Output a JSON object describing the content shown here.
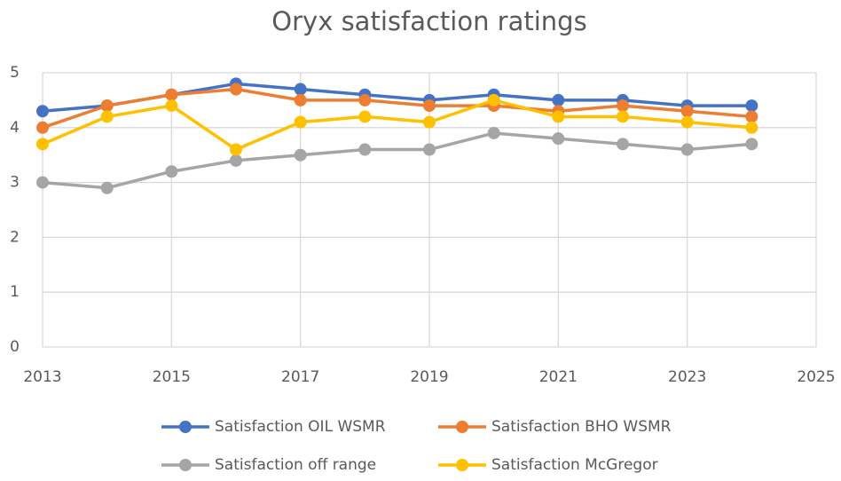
{
  "chart_data": {
    "type": "line",
    "title": "Oryx satisfaction ratings",
    "x": [
      2013,
      2014,
      2015,
      2016,
      2017,
      2018,
      2019,
      2020,
      2021,
      2022,
      2023,
      2024
    ],
    "series": [
      {
        "name": "Satisfaction OIL WSMR",
        "color": "#4472c4",
        "values": [
          4.3,
          4.4,
          4.6,
          4.8,
          4.7,
          4.6,
          4.5,
          4.6,
          4.5,
          4.5,
          4.4,
          4.4
        ]
      },
      {
        "name": "Satisfaction BHO WSMR",
        "color": "#ed7d31",
        "values": [
          4.0,
          4.4,
          4.6,
          4.7,
          4.5,
          4.5,
          4.4,
          4.4,
          4.3,
          4.4,
          4.3,
          4.2
        ]
      },
      {
        "name": "Satisfaction off range",
        "color": "#a5a5a5",
        "values": [
          3.0,
          2.9,
          3.2,
          3.4,
          3.5,
          3.6,
          3.6,
          3.9,
          3.8,
          3.7,
          3.6,
          3.7
        ]
      },
      {
        "name": "Satisfaction McGregor",
        "color": "#ffc000",
        "values": [
          3.7,
          4.2,
          4.4,
          3.6,
          4.1,
          4.2,
          4.1,
          4.5,
          4.2,
          4.2,
          4.1,
          4.0
        ]
      }
    ],
    "xlim": [
      2013,
      2025
    ],
    "xticks": [
      2013,
      2015,
      2017,
      2019,
      2021,
      2023,
      2025
    ],
    "ylim": [
      0,
      5
    ],
    "yticks": [
      0,
      1,
      2,
      3,
      4,
      5
    ],
    "grid": true,
    "legend": "bottom"
  }
}
